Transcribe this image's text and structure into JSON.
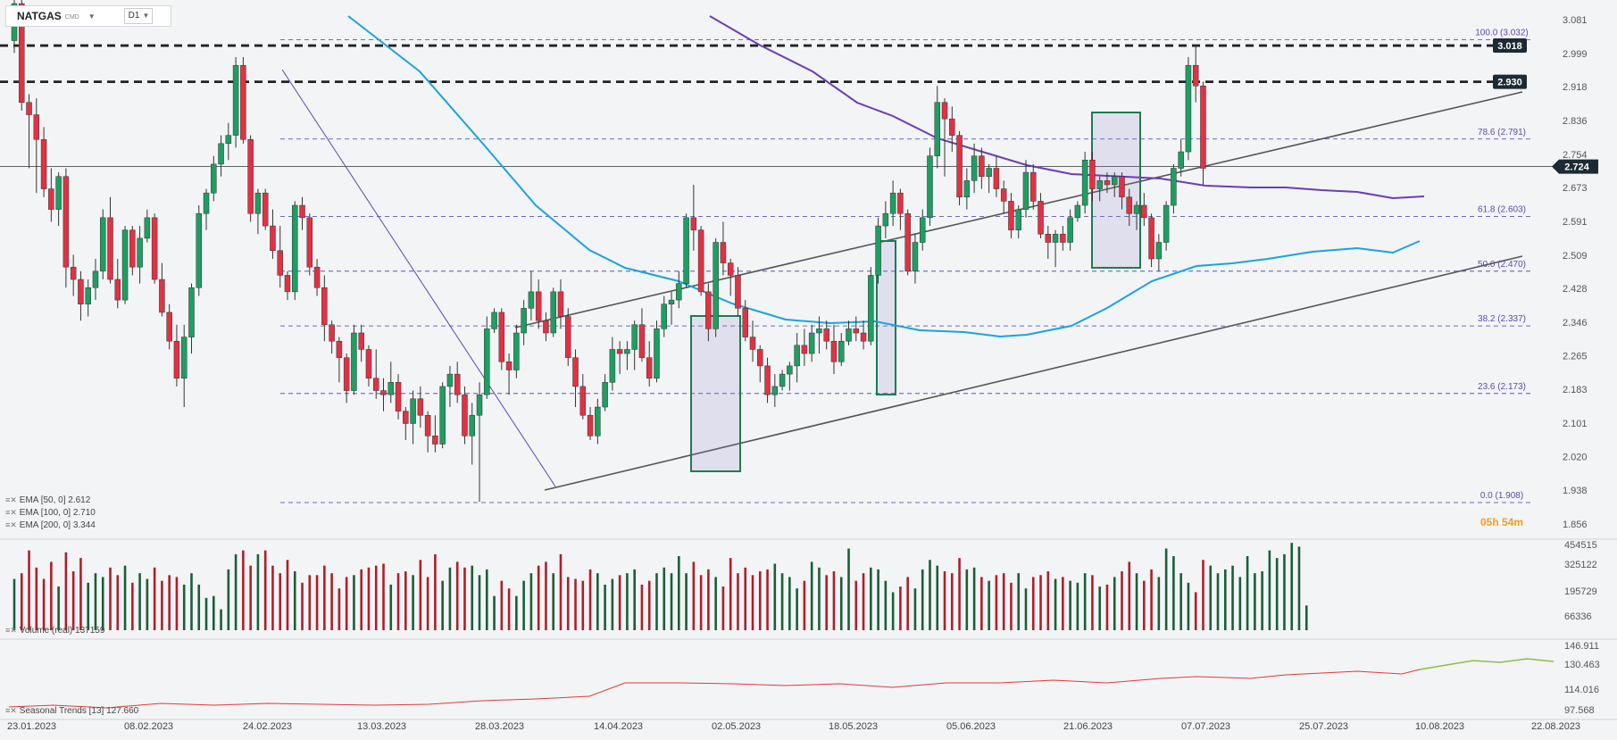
{
  "symbol": "NATGAS",
  "source": "CMD",
  "timeframe": "D1",
  "price_labels": [
    "3.081",
    "2.999",
    "2.918",
    "2.836",
    "2.754",
    "2.673",
    "2.591",
    "2.509",
    "2.428",
    "2.346",
    "2.265",
    "2.183",
    "2.101",
    "2.020",
    "1.938",
    "1.856"
  ],
  "date_labels": [
    "23.01.2023",
    "08.02.2023",
    "24.02.2023",
    "13.03.2023",
    "28.03.2023",
    "14.04.2023",
    "02.05.2023",
    "18.05.2023",
    "05.06.2023",
    "21.06.2023",
    "07.07.2023",
    "25.07.2023",
    "10.08.2023",
    "22.08.2023"
  ],
  "current_price": "2.724",
  "resistance_levels": [
    "3.018",
    "2.930"
  ],
  "fib_labels": [
    "100.0 (3.032)",
    "78.6 (2.791)",
    "61.8 (2.603)",
    "50.0 (2.470)",
    "38.2 (2.337)",
    "23.6 (2.173)",
    "0.0 (1.908)"
  ],
  "indicators": [
    "EMA [50, 0] 2.612",
    "EMA [100, 0] 2.710",
    "EMA [200, 0] 3.344"
  ],
  "volume_legend": "Volume (real) 137159",
  "volume_labels": [
    "454515",
    "325122",
    "195729",
    "66336"
  ],
  "seasonal_legend": "Seasonal Trends [13] 127.660",
  "seasonal_labels": [
    "146.911",
    "130.463",
    "114.016",
    "97.568"
  ],
  "timer": "05h 54m",
  "colors": {
    "up": "#1e9e62",
    "down": "#e03244",
    "ema50": "#1aa3e0",
    "ema100": "#6a3db8",
    "fib": "#3f3fa8",
    "vol_up": "#1b5e3a",
    "vol_down": "#b01e2b"
  },
  "chart_data": {
    "type": "candlestick",
    "candles": [
      [
        3.03,
        3.16,
        3.0,
        3.12
      ],
      [
        3.12,
        3.13,
        2.86,
        2.88
      ],
      [
        2.88,
        2.9,
        2.72,
        2.85
      ],
      [
        2.85,
        2.89,
        2.66,
        2.79
      ],
      [
        2.79,
        2.82,
        2.65,
        2.67
      ],
      [
        2.67,
        2.72,
        2.59,
        2.62
      ],
      [
        2.62,
        2.71,
        2.58,
        2.7
      ],
      [
        2.7,
        2.72,
        2.43,
        2.48
      ],
      [
        2.48,
        2.51,
        2.41,
        2.45
      ],
      [
        2.45,
        2.47,
        2.35,
        2.39
      ],
      [
        2.39,
        2.45,
        2.36,
        2.43
      ],
      [
        2.43,
        2.5,
        2.4,
        2.47
      ],
      [
        2.47,
        2.62,
        2.45,
        2.6
      ],
      [
        2.6,
        2.65,
        2.44,
        2.45
      ],
      [
        2.45,
        2.5,
        2.38,
        2.4
      ],
      [
        2.4,
        2.58,
        2.39,
        2.57
      ],
      [
        2.57,
        2.58,
        2.46,
        2.48
      ],
      [
        2.48,
        2.58,
        2.44,
        2.55
      ],
      [
        2.55,
        2.62,
        2.54,
        2.6
      ],
      [
        2.6,
        2.61,
        2.44,
        2.45
      ],
      [
        2.45,
        2.49,
        2.36,
        2.37
      ],
      [
        2.37,
        2.39,
        2.28,
        2.3
      ],
      [
        2.3,
        2.34,
        2.19,
        2.21
      ],
      [
        2.21,
        2.34,
        2.14,
        2.31
      ],
      [
        2.31,
        2.44,
        2.27,
        2.43
      ],
      [
        2.43,
        2.63,
        2.41,
        2.61
      ],
      [
        2.61,
        2.67,
        2.57,
        2.66
      ],
      [
        2.66,
        2.75,
        2.64,
        2.73
      ],
      [
        2.73,
        2.8,
        2.7,
        2.78
      ],
      [
        2.78,
        2.83,
        2.74,
        2.8
      ],
      [
        2.8,
        2.99,
        2.77,
        2.97
      ],
      [
        2.97,
        2.99,
        2.78,
        2.79
      ],
      [
        2.79,
        2.8,
        2.59,
        2.61
      ],
      [
        2.61,
        2.67,
        2.56,
        2.66
      ],
      [
        2.66,
        2.67,
        2.57,
        2.58
      ],
      [
        2.58,
        2.62,
        2.5,
        2.52
      ],
      [
        2.52,
        2.58,
        2.43,
        2.46
      ],
      [
        2.46,
        2.47,
        2.4,
        2.42
      ],
      [
        2.42,
        2.64,
        2.4,
        2.63
      ],
      [
        2.63,
        2.65,
        2.57,
        2.6
      ],
      [
        2.6,
        2.61,
        2.46,
        2.48
      ],
      [
        2.48,
        2.5,
        2.41,
        2.43
      ],
      [
        2.43,
        2.46,
        2.3,
        2.34
      ],
      [
        2.34,
        2.35,
        2.27,
        2.3
      ],
      [
        2.3,
        2.31,
        2.2,
        2.26
      ],
      [
        2.26,
        2.27,
        2.15,
        2.18
      ],
      [
        2.18,
        2.34,
        2.17,
        2.32
      ],
      [
        2.32,
        2.34,
        2.25,
        2.28
      ],
      [
        2.28,
        2.29,
        2.19,
        2.21
      ],
      [
        2.21,
        2.28,
        2.16,
        2.18
      ],
      [
        2.18,
        2.21,
        2.13,
        2.17
      ],
      [
        2.17,
        2.25,
        2.15,
        2.2
      ],
      [
        2.2,
        2.22,
        2.11,
        2.13
      ],
      [
        2.13,
        2.14,
        2.06,
        2.1
      ],
      [
        2.1,
        2.18,
        2.05,
        2.16
      ],
      [
        2.16,
        2.19,
        2.09,
        2.12
      ],
      [
        2.12,
        2.13,
        2.03,
        2.07
      ],
      [
        2.07,
        2.12,
        2.03,
        2.05
      ],
      [
        2.05,
        2.2,
        2.04,
        2.19
      ],
      [
        2.19,
        2.24,
        2.14,
        2.22
      ],
      [
        2.22,
        2.25,
        2.15,
        2.17
      ],
      [
        2.17,
        2.19,
        2.05,
        2.07
      ],
      [
        2.07,
        2.15,
        2.0,
        2.12
      ],
      [
        2.12,
        2.2,
        1.91,
        2.17
      ],
      [
        2.17,
        2.36,
        2.16,
        2.33
      ],
      [
        2.33,
        2.38,
        2.32,
        2.37
      ],
      [
        2.37,
        2.38,
        2.23,
        2.25
      ],
      [
        2.25,
        2.27,
        2.17,
        2.23
      ],
      [
        2.23,
        2.34,
        2.21,
        2.32
      ],
      [
        2.32,
        2.4,
        2.29,
        2.38
      ],
      [
        2.38,
        2.47,
        2.35,
        2.42
      ],
      [
        2.42,
        2.45,
        2.33,
        2.35
      ],
      [
        2.35,
        2.37,
        2.3,
        2.32
      ],
      [
        2.32,
        2.43,
        2.31,
        2.42
      ],
      [
        2.42,
        2.45,
        2.33,
        2.36
      ],
      [
        2.36,
        2.38,
        2.24,
        2.26
      ],
      [
        2.26,
        2.28,
        2.14,
        2.19
      ],
      [
        2.19,
        2.22,
        2.11,
        2.12
      ],
      [
        2.12,
        2.14,
        2.06,
        2.07
      ],
      [
        2.07,
        2.16,
        2.05,
        2.14
      ],
      [
        2.14,
        2.22,
        2.13,
        2.2
      ],
      [
        2.2,
        2.31,
        2.18,
        2.28
      ],
      [
        2.28,
        2.3,
        2.22,
        2.27
      ],
      [
        2.27,
        2.3,
        2.23,
        2.28
      ],
      [
        2.28,
        2.35,
        2.23,
        2.34
      ],
      [
        2.34,
        2.38,
        2.25,
        2.26
      ],
      [
        2.26,
        2.3,
        2.19,
        2.21
      ],
      [
        2.21,
        2.35,
        2.2,
        2.33
      ],
      [
        2.33,
        2.41,
        2.31,
        2.39
      ],
      [
        2.39,
        2.42,
        2.34,
        2.4
      ],
      [
        2.4,
        2.47,
        2.38,
        2.44
      ],
      [
        2.44,
        2.61,
        2.43,
        2.6
      ],
      [
        2.6,
        2.68,
        2.52,
        2.57
      ],
      [
        2.57,
        2.58,
        2.41,
        2.42
      ],
      [
        2.42,
        2.44,
        2.3,
        2.33
      ],
      [
        2.33,
        2.55,
        2.31,
        2.54
      ],
      [
        2.54,
        2.59,
        2.46,
        2.49
      ],
      [
        2.49,
        2.5,
        2.41,
        2.46
      ],
      [
        2.46,
        2.48,
        2.36,
        2.38
      ],
      [
        2.38,
        2.4,
        2.3,
        2.31
      ],
      [
        2.31,
        2.35,
        2.25,
        2.28
      ],
      [
        2.28,
        2.29,
        2.2,
        2.24
      ],
      [
        2.24,
        2.26,
        2.15,
        2.17
      ],
      [
        2.17,
        2.22,
        2.14,
        2.19
      ],
      [
        2.19,
        2.23,
        2.18,
        2.22
      ],
      [
        2.22,
        2.25,
        2.18,
        2.24
      ],
      [
        2.24,
        2.32,
        2.2,
        2.29
      ],
      [
        2.29,
        2.33,
        2.24,
        2.27
      ],
      [
        2.27,
        2.34,
        2.25,
        2.32
      ],
      [
        2.32,
        2.36,
        2.27,
        2.33
      ],
      [
        2.33,
        2.35,
        2.28,
        2.3
      ],
      [
        2.3,
        2.34,
        2.22,
        2.25
      ],
      [
        2.25,
        2.32,
        2.24,
        2.3
      ],
      [
        2.3,
        2.35,
        2.29,
        2.33
      ],
      [
        2.33,
        2.36,
        2.3,
        2.32
      ],
      [
        2.32,
        2.35,
        2.28,
        2.3
      ],
      [
        2.3,
        2.48,
        2.29,
        2.46
      ],
      [
        2.46,
        2.6,
        2.44,
        2.58
      ],
      [
        2.58,
        2.64,
        2.55,
        2.61
      ],
      [
        2.61,
        2.69,
        2.58,
        2.66
      ],
      [
        2.66,
        2.67,
        2.57,
        2.61
      ],
      [
        2.61,
        2.62,
        2.46,
        2.47
      ],
      [
        2.47,
        2.56,
        2.44,
        2.54
      ],
      [
        2.54,
        2.62,
        2.52,
        2.6
      ],
      [
        2.6,
        2.77,
        2.58,
        2.75
      ],
      [
        2.75,
        2.92,
        2.72,
        2.88
      ],
      [
        2.88,
        2.89,
        2.7,
        2.84
      ],
      [
        2.84,
        2.87,
        2.76,
        2.8
      ],
      [
        2.8,
        2.81,
        2.63,
        2.65
      ],
      [
        2.65,
        2.72,
        2.62,
        2.69
      ],
      [
        2.69,
        2.78,
        2.66,
        2.75
      ],
      [
        2.75,
        2.77,
        2.67,
        2.7
      ],
      [
        2.7,
        2.73,
        2.66,
        2.72
      ],
      [
        2.72,
        2.75,
        2.65,
        2.67
      ],
      [
        2.67,
        2.69,
        2.61,
        2.64
      ],
      [
        2.64,
        2.66,
        2.55,
        2.57
      ],
      [
        2.57,
        2.63,
        2.55,
        2.62
      ],
      [
        2.62,
        2.74,
        2.6,
        2.71
      ],
      [
        2.71,
        2.73,
        2.62,
        2.64
      ],
      [
        2.64,
        2.66,
        2.55,
        2.56
      ],
      [
        2.56,
        2.58,
        2.5,
        2.54
      ],
      [
        2.54,
        2.57,
        2.48,
        2.56
      ],
      [
        2.56,
        2.58,
        2.52,
        2.54
      ],
      [
        2.54,
        2.62,
        2.52,
        2.6
      ],
      [
        2.6,
        2.64,
        2.59,
        2.63
      ],
      [
        2.63,
        2.76,
        2.61,
        2.74
      ],
      [
        2.74,
        2.76,
        2.64,
        2.67
      ],
      [
        2.67,
        2.7,
        2.64,
        2.69
      ],
      [
        2.69,
        2.71,
        2.66,
        2.68
      ],
      [
        2.68,
        2.71,
        2.65,
        2.7
      ],
      [
        2.7,
        2.71,
        2.62,
        2.65
      ],
      [
        2.65,
        2.67,
        2.58,
        2.61
      ],
      [
        2.61,
        2.64,
        2.57,
        2.63
      ],
      [
        2.63,
        2.66,
        2.58,
        2.6
      ],
      [
        2.6,
        2.61,
        2.48,
        2.5
      ],
      [
        2.5,
        2.56,
        2.47,
        2.54
      ],
      [
        2.54,
        2.64,
        2.52,
        2.63
      ],
      [
        2.63,
        2.73,
        2.61,
        2.72
      ],
      [
        2.72,
        2.79,
        2.7,
        2.76
      ],
      [
        2.76,
        2.99,
        2.74,
        2.97
      ],
      [
        2.97,
        3.02,
        2.88,
        2.92
      ],
      [
        2.92,
        2.93,
        2.68,
        2.72
      ]
    ],
    "volume": [
      270000,
      300000,
      420000,
      330000,
      270000,
      360000,
      230000,
      410000,
      310000,
      380000,
      250000,
      300000,
      280000,
      330000,
      290000,
      340000,
      250000,
      300000,
      270000,
      330000,
      260000,
      290000,
      280000,
      240000,
      300000,
      240000,
      170000,
      180000,
      110000,
      320000,
      400000,
      420000,
      340000,
      400000,
      420000,
      340000,
      300000,
      370000,
      310000,
      250000,
      290000,
      290000,
      340000,
      300000,
      220000,
      280000,
      290000,
      320000,
      330000,
      340000,
      350000,
      240000,
      300000,
      310000,
      290000,
      370000,
      280000,
      400000,
      260000,
      330000,
      360000,
      330000,
      340000,
      290000,
      320000,
      180000,
      260000,
      220000,
      180000,
      260000,
      300000,
      340000,
      360000,
      300000,
      400000,
      280000,
      270000,
      260000,
      320000,
      300000,
      240000,
      270000,
      290000,
      300000,
      320000,
      240000,
      260000,
      300000,
      330000,
      300000,
      390000,
      300000,
      360000,
      290000,
      320000,
      280000,
      230000,
      380000,
      300000,
      330000,
      290000,
      310000,
      320000,
      350000,
      300000,
      280000,
      220000,
      260000,
      360000,
      330000,
      290000,
      310000,
      280000,
      430000,
      260000,
      300000,
      330000,
      320000,
      260000,
      200000,
      230000,
      280000,
      220000,
      320000,
      370000,
      340000,
      310000,
      300000,
      380000,
      320000,
      330000,
      280000,
      260000,
      290000,
      300000,
      250000,
      300000,
      220000,
      280000,
      290000,
      310000,
      270000,
      280000,
      260000,
      250000,
      300000,
      290000,
      230000,
      240000,
      280000,
      310000,
      360000,
      300000,
      260000,
      320000,
      280000,
      430000,
      390000,
      300000,
      250000,
      200000,
      370000,
      340000,
      300000,
      320000,
      340000,
      280000,
      390000,
      300000,
      310000,
      420000,
      380000,
      400000,
      460000,
      440000,
      130000
    ],
    "fibonacci": [
      3.032,
      2.791,
      2.603,
      2.47,
      2.337,
      2.173,
      1.908
    ],
    "ylim": [
      1.856,
      3.16
    ]
  }
}
